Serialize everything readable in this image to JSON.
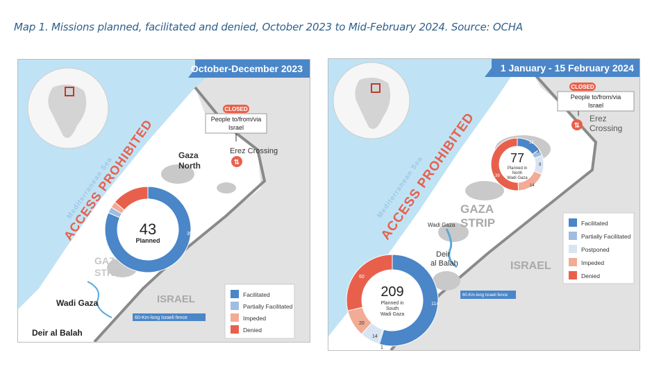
{
  "caption": "Map 1. Missions planned, facilitated and denied, October 2023 to Mid-February 2024. Source: OCHA",
  "colors": {
    "facilitated": "#4a86c8",
    "partially_facilitated": "#9fbde0",
    "postponed": "#d9e4f2",
    "impeded": "#f2ab94",
    "denied": "#e8604c",
    "sea": "#bfe3f5",
    "banner": "#4a86c8",
    "closed_badge": "#e8604c"
  },
  "map1": {
    "period": "October-December 2023",
    "sea_label": "Mediterranean Sea",
    "access_label": "ACCESS PROHIBITED",
    "crossing": {
      "badge": "CLOSED",
      "line1": "People to/from/via",
      "line2": "Israel",
      "name": "Erez Crossing"
    },
    "place_labels": [
      "Gaza",
      "North",
      "GAZA",
      "STRIP",
      "ISRAEL",
      "Wadi Gaza",
      "Deir al Balah"
    ],
    "fence_label": "60-Km-long Israeli fence",
    "donut": {
      "total": "43",
      "center_label": "Planned",
      "segments": [
        {
          "category": "Facilitated",
          "value": 35
        },
        {
          "category": "Partially Facilitated",
          "value": 1
        },
        {
          "category": "Impeded",
          "value": 1
        },
        {
          "category": "Denied",
          "value": 6
        }
      ],
      "value_labels": [
        "35",
        "6"
      ]
    },
    "legend": [
      "Facilitated",
      "Partially Facilitated",
      "Impeded",
      "Denied"
    ],
    "legend_keys": [
      "facilitated",
      "partially_facilitated",
      "impeded",
      "denied"
    ]
  },
  "map2": {
    "period": "1 January - 15 February 2024",
    "sea_label": "Mediterranean Sea",
    "access_label": "ACCESS PROHIBITED",
    "crossing": {
      "badge": "CLOSED",
      "line1": "People to/from/via",
      "line2": "Israel",
      "name1": "Erez",
      "name2": "Crossing"
    },
    "place_labels": [
      "GAZA",
      "STRIP",
      "ISRAEL",
      "Wadi Gaza",
      "Deir",
      "al Balah"
    ],
    "fence_label": "60-Km-long Israeli fence",
    "donut_north": {
      "total": "77",
      "line1": "Planned in",
      "line2": "North",
      "line3": "Wadi Gaza",
      "segments": [
        {
          "category": "Facilitated",
          "value": 12
        },
        {
          "category": "Partially Facilitated",
          "value": 3
        },
        {
          "category": "Postponed",
          "value": 9
        },
        {
          "category": "Impeded",
          "value": 14
        },
        {
          "category": "Denied",
          "value": 39
        }
      ],
      "value_labels": [
        "12",
        "3",
        "9",
        "14",
        "39"
      ]
    },
    "donut_south": {
      "total": "209",
      "line1": "Planned in",
      "line2": "South",
      "line3": "Wadi Gaza",
      "segments": [
        {
          "category": "Facilitated",
          "value": 114
        },
        {
          "category": "Partially Facilitated",
          "value": 1
        },
        {
          "category": "Postponed",
          "value": 14
        },
        {
          "category": "Impeded",
          "value": 20
        },
        {
          "category": "Denied",
          "value": 60
        }
      ],
      "value_labels": [
        "114",
        "1",
        "14",
        "20",
        "60"
      ]
    },
    "legend": [
      "Facilitated",
      "Partially Facilitated",
      "Postponed",
      "Impeded",
      "Denied"
    ],
    "legend_keys": [
      "facilitated",
      "partially_facilitated",
      "postponed",
      "impeded",
      "denied"
    ]
  }
}
